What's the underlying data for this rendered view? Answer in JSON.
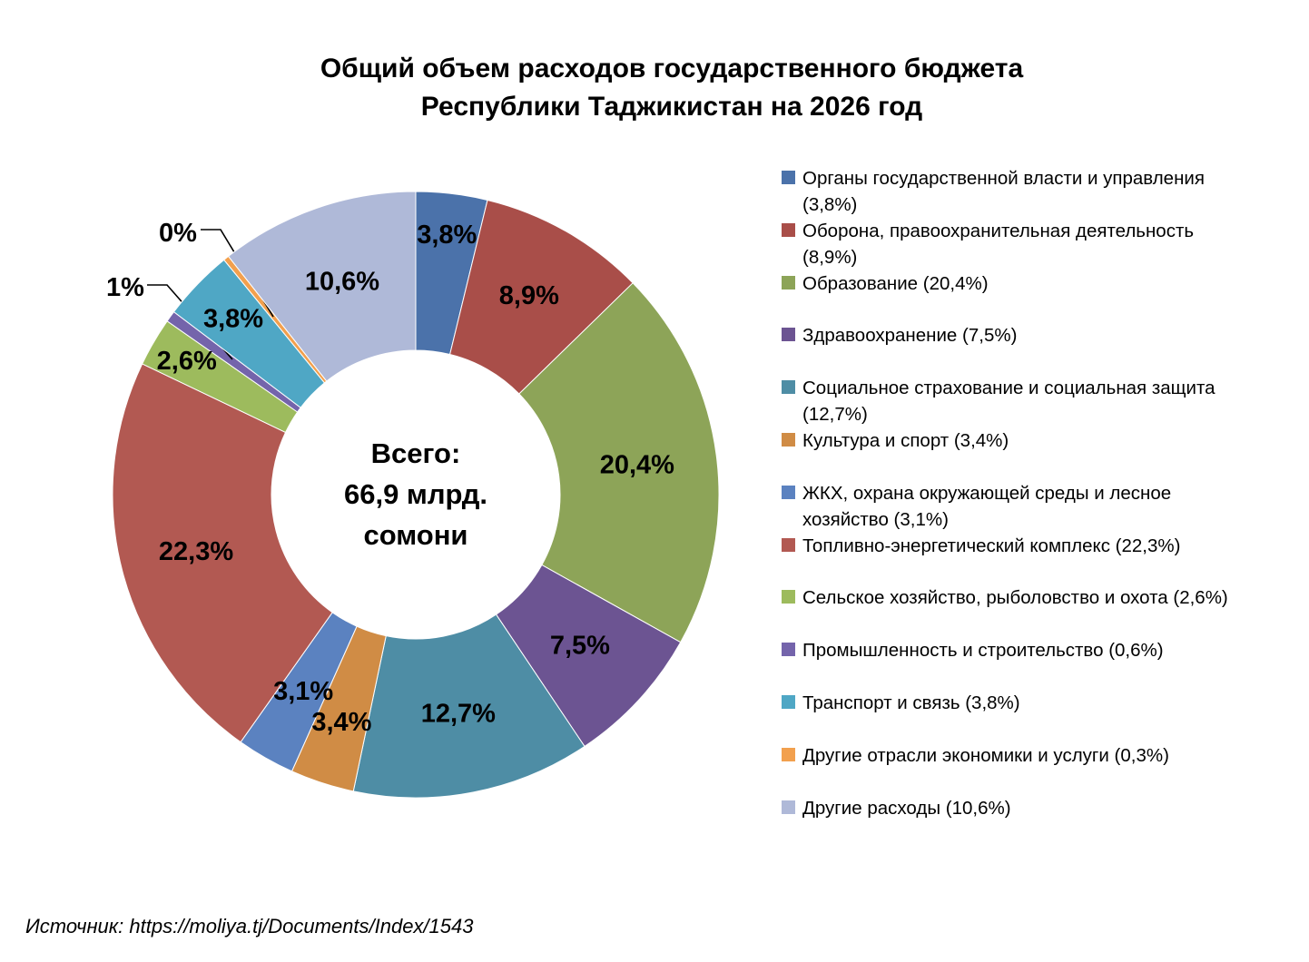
{
  "source": "Источник: https://moliya.tj/Documents/Index/1543",
  "chart_data": {
    "type": "pie",
    "subtype": "donut",
    "title": "Общий объем расходов государственного бюджета\nРеспублики Таджикистан на 2026 год",
    "center_label": "Всего:\n66,9 млрд.\nсомони",
    "total_value_label": "66,9 млрд. сомони",
    "unit": "percent",
    "legend_position": "right",
    "start_angle": 0,
    "direction": "clockwise",
    "slices": [
      {
        "name": "Органы государственной власти и управления",
        "value": 3.8,
        "slice_label": "3,8%",
        "legend_label": "Органы государственной власти и управления\n(3,8%)",
        "color": "#4B72AA"
      },
      {
        "name": "Оборона, правоохранительная деятельность",
        "value": 8.9,
        "slice_label": "8,9%",
        "legend_label": "Оборона, правоохранительная деятельность\n(8,9%)",
        "color": "#A94E49"
      },
      {
        "name": "Образование",
        "value": 20.4,
        "slice_label": "20,4%",
        "legend_label": "Образование (20,4%)",
        "color": "#8DA458"
      },
      {
        "name": "Здравоохранение",
        "value": 7.5,
        "slice_label": "7,5%",
        "legend_label": "Здравоохранение (7,5%)",
        "color": "#6C5492"
      },
      {
        "name": "Социальное страхование и социальная защита",
        "value": 12.7,
        "slice_label": "12,7%",
        "legend_label": "Социальное страхование и социальная защита\n(12,7%)",
        "color": "#4E8DA5"
      },
      {
        "name": "Культура и спорт",
        "value": 3.4,
        "slice_label": "3,4%",
        "legend_label": "Культура и спорт (3,4%)",
        "color": "#D08C45"
      },
      {
        "name": "ЖКХ, охрана окружающей среды и лесное хозяйство",
        "value": 3.1,
        "slice_label": "3,1%",
        "legend_label": "ЖКХ, охрана окружающей среды и лесное\nхозяйство (3,1%)",
        "color": "#5B82C0"
      },
      {
        "name": "Топливно-энергетический комплекс",
        "value": 22.3,
        "slice_label": "22,3%",
        "legend_label": "Топливно-энергетический комплекс (22,3%)",
        "color": "#B25952"
      },
      {
        "name": "Сельское хозяйство, рыболовство и охота",
        "value": 2.6,
        "slice_label": "2,6%",
        "legend_label": "Сельское хозяйство, рыболовство и охота (2,6%)",
        "color": "#9DBB5D"
      },
      {
        "name": "Промышленность и строительство",
        "value": 0.6,
        "slice_label": "1%",
        "legend_label": "Промышленность и строительство (0,6%)",
        "color": "#7464AB"
      },
      {
        "name": "Транспорт и связь",
        "value": 3.8,
        "slice_label": "3,8%",
        "legend_label": "Транспорт и связь (3,8%)",
        "color": "#4FA7C5"
      },
      {
        "name": "Другие отрасли экономики и услуги",
        "value": 0.3,
        "slice_label": "0%",
        "legend_label": "Другие отрасли экономики и услуги (0,3%)",
        "color": "#F2A04E"
      },
      {
        "name": "Другие расходы",
        "value": 10.6,
        "slice_label": "10,6%",
        "legend_label": "Другие расходы (10,6%)",
        "color": "#AFB9D8"
      }
    ]
  }
}
